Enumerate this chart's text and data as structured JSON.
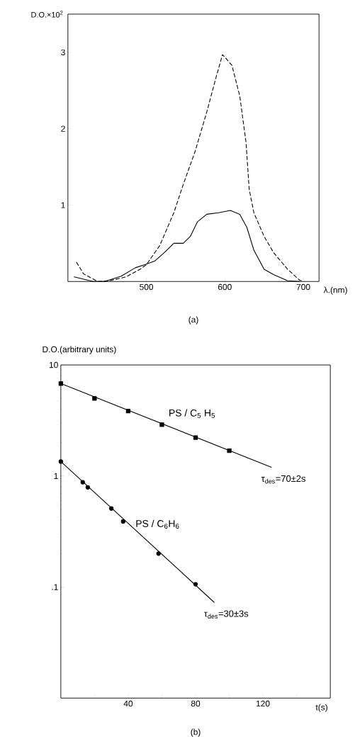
{
  "chart_data": [
    {
      "type": "line",
      "title": "(a)",
      "ylabel": "D.O.×10$^{2}$",
      "xlabel": "λ.(nm)",
      "xlim": [
        400,
        720
      ],
      "ylim": [
        0,
        3.5
      ],
      "xticks": [
        500,
        600,
        700
      ],
      "yticks": [
        {
          "value": 0,
          "label": null
        },
        1,
        2,
        3
      ],
      "grid": false,
      "legend": false,
      "series": [
        {
          "color": "#000000",
          "line_style": "dashed",
          "x": [
            411,
            420,
            438,
            453,
            474,
            492,
            500,
            517,
            535,
            547,
            562,
            577,
            589,
            597,
            609,
            619,
            627,
            631,
            637,
            650,
            662,
            680,
            695,
            700
          ],
          "values": [
            0.25,
            0.1,
            0.0,
            0.01,
            0.06,
            0.16,
            0.22,
            0.47,
            0.9,
            1.27,
            1.7,
            2.22,
            2.68,
            2.97,
            2.83,
            2.43,
            1.82,
            1.21,
            0.9,
            0.59,
            0.38,
            0.16,
            0.02,
            0.0
          ]
        },
        {
          "color": "#000000",
          "line_style": "solid",
          "x": [
            408,
            432,
            447,
            468,
            486,
            498,
            511,
            523,
            535,
            547,
            556,
            565,
            577,
            592,
            607,
            619,
            628,
            637,
            650,
            662,
            680,
            695
          ],
          "values": [
            0.06,
            0.0,
            0.0,
            0.07,
            0.18,
            0.22,
            0.27,
            0.38,
            0.5,
            0.5,
            0.59,
            0.78,
            0.88,
            0.9,
            0.93,
            0.88,
            0.71,
            0.41,
            0.16,
            0.09,
            0.01,
            0.0
          ]
        }
      ]
    },
    {
      "type": "scatter",
      "title": "(b)",
      "ylabel": "D.O.(arbitrary units)",
      "xlabel": "t(s)",
      "log": "y",
      "xlim": [
        0,
        160
      ],
      "ylim": [
        0.01,
        10
      ],
      "xticks": [
        {
          "value": 20,
          "label": null
        },
        40,
        {
          "value": 60,
          "label": null
        },
        80,
        {
          "value": 100,
          "label": null
        },
        120,
        {
          "value": 140,
          "label": null
        }
      ],
      "yticks": [
        {
          "value": 0.1,
          "label": ".1"
        },
        1,
        10
      ],
      "grid": false,
      "legend": false,
      "series": [
        {
          "name": "PS / C$_{5}$ H$_{5}$",
          "color": "#000000",
          "marker": "square",
          "x": [
            0,
            20,
            40,
            60,
            80,
            100
          ],
          "values": [
            6.8,
            5.0,
            3.85,
            2.9,
            2.22,
            1.69
          ]
        },
        {
          "type": "line",
          "color": "#000000",
          "line_style": "solid",
          "x": [
            0,
            125
          ],
          "values": [
            6.8,
            1.2
          ]
        },
        {
          "name": "PS / C$_{6}$H$_{6}$",
          "color": "#000000",
          "marker": "circle",
          "x": [
            0,
            13,
            16,
            30,
            37,
            58,
            80
          ],
          "values": [
            1.35,
            0.88,
            0.79,
            0.51,
            0.39,
            0.2,
            0.106
          ]
        },
        {
          "type": "line",
          "color": "#000000",
          "line_style": "solid",
          "x": [
            0,
            91
          ],
          "values": [
            1.35,
            0.073
          ]
        }
      ],
      "annotations": [
        {
          "text": "τ$_{des}$=70±2s",
          "x": 125,
          "y": 1.2
        },
        {
          "text": "τ$_{des}$=30±3s",
          "x": 91,
          "y": 0.073
        }
      ]
    }
  ]
}
